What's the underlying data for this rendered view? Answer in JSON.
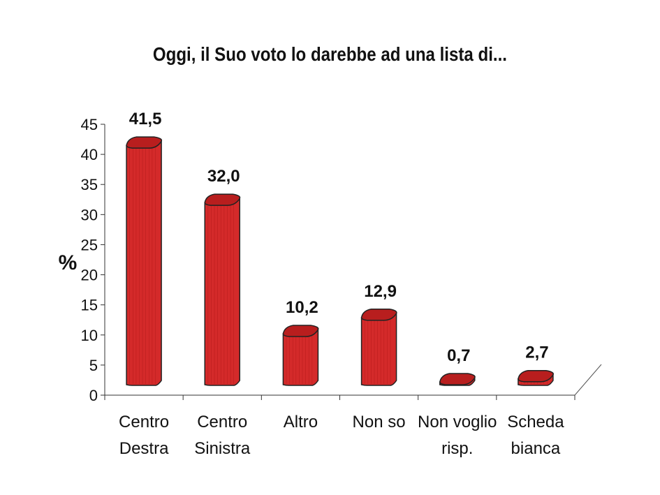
{
  "chart_data": {
    "type": "bar",
    "title": "Oggi, il Suo voto lo darebbe ad una lista di...",
    "xlabel": "",
    "ylabel": "%",
    "ylim": [
      0,
      45
    ],
    "yticks": [
      "0",
      "5",
      "10",
      "15",
      "20",
      "25",
      "30",
      "35",
      "40",
      "45"
    ],
    "categories": [
      [
        "Centro",
        "Destra"
      ],
      [
        "Centro",
        "Sinistra"
      ],
      [
        "Altro"
      ],
      [
        "Non so"
      ],
      [
        "Non voglio",
        "risp."
      ],
      [
        "Scheda",
        "bianca"
      ]
    ],
    "values": [
      41.5,
      32.0,
      10.2,
      12.9,
      0.7,
      2.7
    ],
    "value_labels": [
      "41,5",
      "32,0",
      "10,2",
      "12,9",
      "0,7",
      "2,7"
    ],
    "grid": false,
    "legend": "none",
    "style": "3d-cylinder",
    "colors": {
      "bar_fill": "#d42a2a",
      "bar_top": "#b81e1e",
      "bar_stroke": "#222222",
      "text": "#111111"
    }
  }
}
